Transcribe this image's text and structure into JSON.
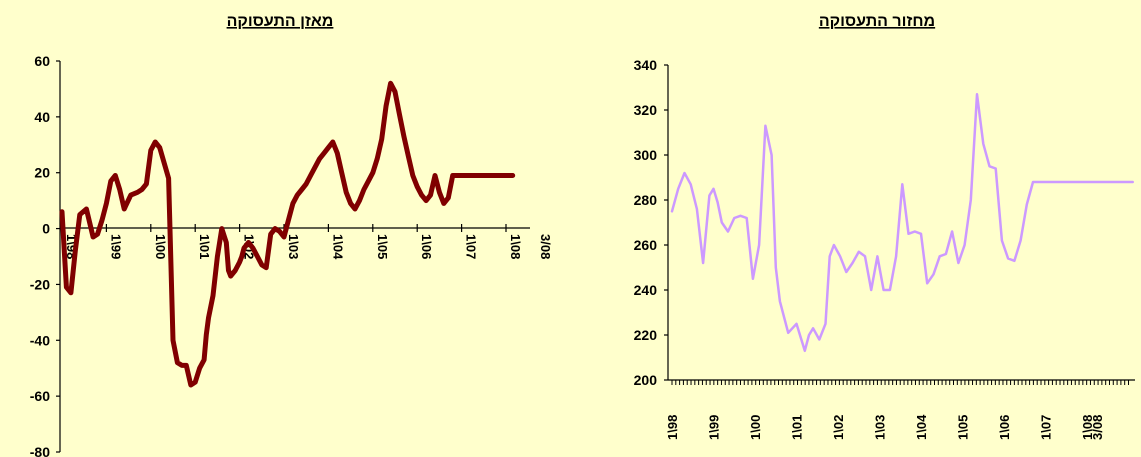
{
  "chart_data": [
    {
      "type": "line",
      "title": "מאזן התעסוקה",
      "xlabel": "",
      "ylabel": "",
      "ylim": [
        -80,
        60
      ],
      "yticks": [
        "60",
        "40",
        "20",
        "0",
        "-20",
        "-40",
        "-60",
        "-80"
      ],
      "xticks": [
        "1\\98",
        "1\\99",
        "1\\00",
        "1\\01",
        "1\\02",
        "1\\03",
        "1\\04",
        "1\\05",
        "1\\06",
        "1\\07",
        "1\\08",
        "3/08"
      ],
      "color": "#800000",
      "series": [
        {
          "x": [
            0,
            0.1,
            0.2,
            0.3,
            0.4,
            0.55,
            0.7,
            0.8,
            0.9,
            1.0,
            1.1,
            1.2,
            1.3,
            1.4,
            1.55,
            1.7,
            1.8,
            1.9,
            2.0,
            2.1,
            2.2,
            2.4,
            2.5,
            2.6,
            2.7,
            2.8,
            2.9,
            3.0,
            3.1,
            3.2,
            3.25,
            3.3,
            3.4,
            3.5,
            3.6,
            3.7,
            3.75,
            3.8,
            3.9,
            4.0,
            4.05,
            4.1,
            4.2,
            4.3,
            4.4,
            4.5,
            4.6,
            4.7,
            4.8,
            4.9,
            5.0,
            5.1,
            5.2,
            5.3,
            5.4,
            5.5,
            5.6,
            5.7,
            5.8,
            5.9,
            6.0,
            6.1,
            6.2,
            6.3,
            6.4,
            6.5,
            6.6,
            6.7,
            6.8,
            6.9,
            7.0,
            7.1,
            7.2,
            7.3,
            7.4,
            7.5,
            7.6,
            7.7,
            7.8,
            7.9,
            8.0,
            8.1,
            8.2,
            8.3,
            8.4,
            8.5,
            8.6,
            8.7,
            8.8,
            8.9,
            9.0,
            9.1,
            9.2,
            9.3,
            9.4,
            9.5,
            9.6,
            9.7,
            9.8,
            9.9,
            10.0,
            10.1,
            10.15
          ],
          "y": [
            6,
            -21,
            -23,
            -8,
            5,
            7,
            -3,
            -2,
            3,
            9,
            17,
            19,
            14,
            7,
            12,
            13,
            14,
            16,
            28,
            31,
            29,
            18,
            -40,
            -48,
            -49,
            -49,
            -56,
            -55,
            -50,
            -47,
            -38,
            -32,
            -24,
            -10,
            0,
            -5,
            -15,
            -17,
            -15,
            -12,
            -10,
            -7,
            -5,
            -7,
            -10,
            -13,
            -14,
            -2,
            0,
            -1,
            -3,
            3,
            9,
            12,
            14,
            16,
            19,
            22,
            25,
            27,
            29,
            31,
            27,
            20,
            13,
            9,
            7,
            10,
            14,
            17,
            20,
            25,
            32,
            44,
            52,
            49,
            41,
            33,
            26,
            19,
            15,
            12,
            10,
            12,
            19,
            13,
            9,
            11,
            19,
            19,
            19,
            19,
            19,
            19,
            19,
            19,
            19,
            19,
            19,
            19,
            19,
            19,
            19
          ]
        }
      ]
    },
    {
      "type": "line",
      "title": "מחזור התעסוקה",
      "xlabel": "",
      "ylabel": "",
      "ylim": [
        200,
        340
      ],
      "yticks": [
        "340",
        "320",
        "300",
        "280",
        "260",
        "240",
        "220",
        "200"
      ],
      "xticks": [
        "1\\98",
        "1\\99",
        "1\\00",
        "1\\01",
        "1\\02",
        "1\\03",
        "1\\04",
        "1\\05",
        "1\\06",
        "1\\07",
        "1\\08",
        "3/08"
      ],
      "color": "#CC99FF",
      "series": [
        {
          "x": [
            0,
            0.15,
            0.3,
            0.45,
            0.6,
            0.75,
            0.9,
            1.0,
            1.1,
            1.2,
            1.35,
            1.5,
            1.65,
            1.8,
            1.95,
            2.1,
            2.25,
            2.4,
            2.5,
            2.6,
            2.8,
            3.0,
            3.2,
            3.3,
            3.4,
            3.55,
            3.7,
            3.8,
            3.9,
            4.05,
            4.2,
            4.35,
            4.5,
            4.65,
            4.8,
            4.95,
            5.1,
            5.25,
            5.4,
            5.55,
            5.7,
            5.85,
            6.0,
            6.15,
            6.3,
            6.45,
            6.6,
            6.75,
            6.9,
            7.05,
            7.2,
            7.35,
            7.5,
            7.65,
            7.8,
            7.95,
            8.1,
            8.25,
            8.4,
            8.55,
            8.7,
            8.85,
            9.0,
            9.15,
            9.3,
            9.45,
            9.6,
            9.75,
            9.9,
            10.05,
            10.2,
            10.35,
            10.5,
            10.65,
            10.8,
            10.95,
            11.1
          ],
          "y": [
            275,
            285,
            292,
            287,
            276,
            252,
            282,
            285,
            279,
            270,
            266,
            272,
            273,
            272,
            245,
            260,
            313,
            300,
            250,
            235,
            221,
            225,
            213,
            220,
            223,
            218,
            225,
            255,
            260,
            255,
            248,
            252,
            257,
            255,
            240,
            255,
            240,
            240,
            255,
            287,
            265,
            266,
            265,
            243,
            247,
            255,
            256,
            266,
            252,
            260,
            280,
            327,
            305,
            295,
            294,
            262,
            254,
            253,
            262,
            278,
            288,
            288,
            288,
            288,
            288,
            288,
            288,
            288,
            288,
            288,
            288,
            288,
            288,
            288,
            288,
            288,
            288
          ]
        }
      ]
    }
  ]
}
